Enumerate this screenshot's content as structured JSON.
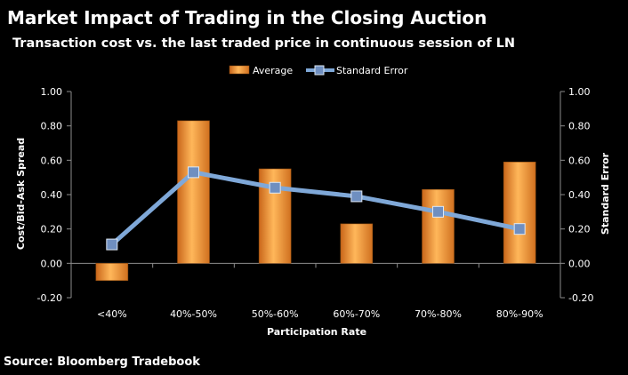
{
  "chart_data": {
    "type": "bar",
    "title": "Market Impact of Trading in the Closing Auction",
    "subtitle": "Transaction cost vs. the last traded price in continuous session of LN",
    "xlabel": "Participation Rate",
    "ylabel": "Cost/Bid-Ask Spread",
    "y2label": "Standard Error",
    "categories": [
      "<40%",
      "40%-50%",
      "50%-60%",
      "60%-70%",
      "70%-80%",
      "80%-90%"
    ],
    "series": [
      {
        "name": "Average",
        "kind": "bar",
        "axis": "left",
        "color": "#F39A2E",
        "values": [
          -0.1,
          0.83,
          0.55,
          0.23,
          0.43,
          0.59
        ]
      },
      {
        "name": "Standard Error",
        "kind": "line",
        "axis": "right",
        "color": "#7FA8D8",
        "marker_color": "#6F8FC0",
        "values": [
          0.11,
          0.53,
          0.44,
          0.39,
          0.3,
          0.2
        ]
      }
    ],
    "ylim": [
      -0.2,
      1.0
    ],
    "y2lim": [
      -0.2,
      1.0
    ],
    "yticks": [
      "1.00",
      "0.80",
      "0.60",
      "0.40",
      "0.20",
      "0.00",
      "-0.20"
    ],
    "y2ticks": [
      "1.00",
      "0.80",
      "0.60",
      "0.40",
      "0.20",
      "0.00",
      "-0.20"
    ],
    "grid": false,
    "legend": "top",
    "source": "Source: Bloomberg Tradebook"
  }
}
